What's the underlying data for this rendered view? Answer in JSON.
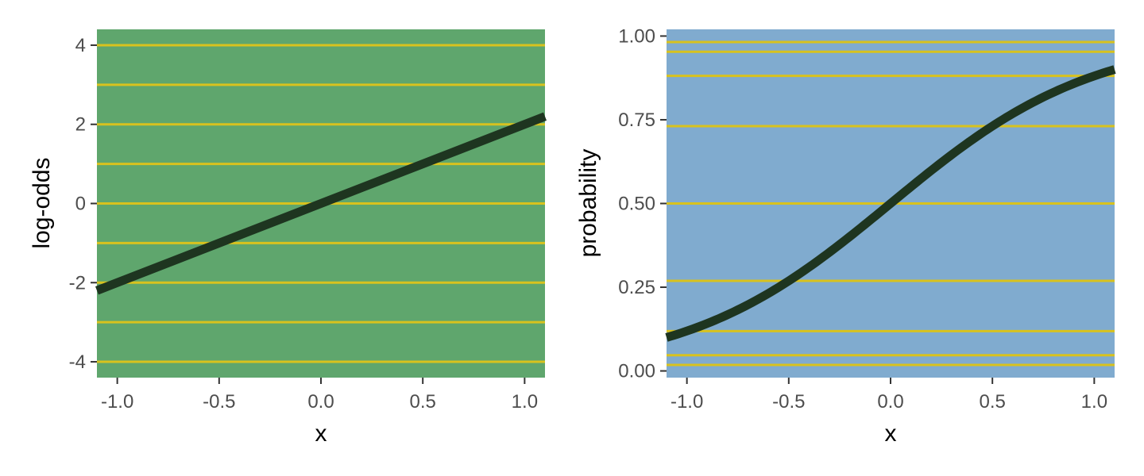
{
  "colors": {
    "left_panel_bg": "#5fa66d",
    "right_panel_bg": "#80abcf",
    "grid_line": "#d8c21e",
    "curve": "#1e3520",
    "tick_text": "#4d4d4d",
    "axis_title": "#000000"
  },
  "chart_data": [
    {
      "type": "line",
      "xlabel": "x",
      "ylabel": "log-odds",
      "xlim": [
        -1.1,
        1.1
      ],
      "ylim": [
        -4.4,
        4.4
      ],
      "x_ticks": [
        -1.0,
        -0.5,
        0.0,
        0.5,
        1.0
      ],
      "x_tick_labels": [
        "-1.0",
        "-0.5",
        "0.0",
        "0.5",
        "1.0"
      ],
      "y_ticks": [
        -4,
        -2,
        0,
        2,
        4
      ],
      "y_tick_labels": [
        "-4",
        "-2",
        "0",
        "2",
        "4"
      ],
      "gridlines_y": [
        -4,
        -3,
        -2,
        -1,
        0,
        1,
        2,
        3,
        4
      ],
      "series": [
        {
          "x": [
            -1.1,
            -1.0,
            -0.5,
            0.0,
            0.5,
            1.0,
            1.1
          ],
          "y": [
            -2.2,
            -2.0,
            -1.0,
            0.0,
            1.0,
            2.0,
            2.2
          ]
        }
      ]
    },
    {
      "type": "line",
      "xlabel": "x",
      "ylabel": "probability",
      "xlim": [
        -1.1,
        1.1
      ],
      "ylim": [
        -0.02,
        1.02
      ],
      "x_ticks": [
        -1.0,
        -0.5,
        0.0,
        0.5,
        1.0
      ],
      "x_tick_labels": [
        "-1.0",
        "-0.5",
        "0.0",
        "0.5",
        "1.0"
      ],
      "y_ticks": [
        0.0,
        0.25,
        0.5,
        0.75,
        1.0
      ],
      "y_tick_labels": [
        "0.00",
        "0.25",
        "0.50",
        "0.75",
        "1.00"
      ],
      "gridlines_y": [
        0.018,
        0.047,
        0.119,
        0.269,
        0.5,
        0.731,
        0.881,
        0.953,
        0.982
      ],
      "series": [
        {
          "x": [
            -1.1,
            -1.0,
            -0.75,
            -0.5,
            -0.25,
            0.0,
            0.25,
            0.5,
            0.75,
            1.0,
            1.1
          ],
          "y": [
            0.0998,
            0.1192,
            0.1824,
            0.2689,
            0.3775,
            0.5,
            0.6225,
            0.7311,
            0.8176,
            0.8808,
            0.9002
          ]
        }
      ]
    }
  ]
}
